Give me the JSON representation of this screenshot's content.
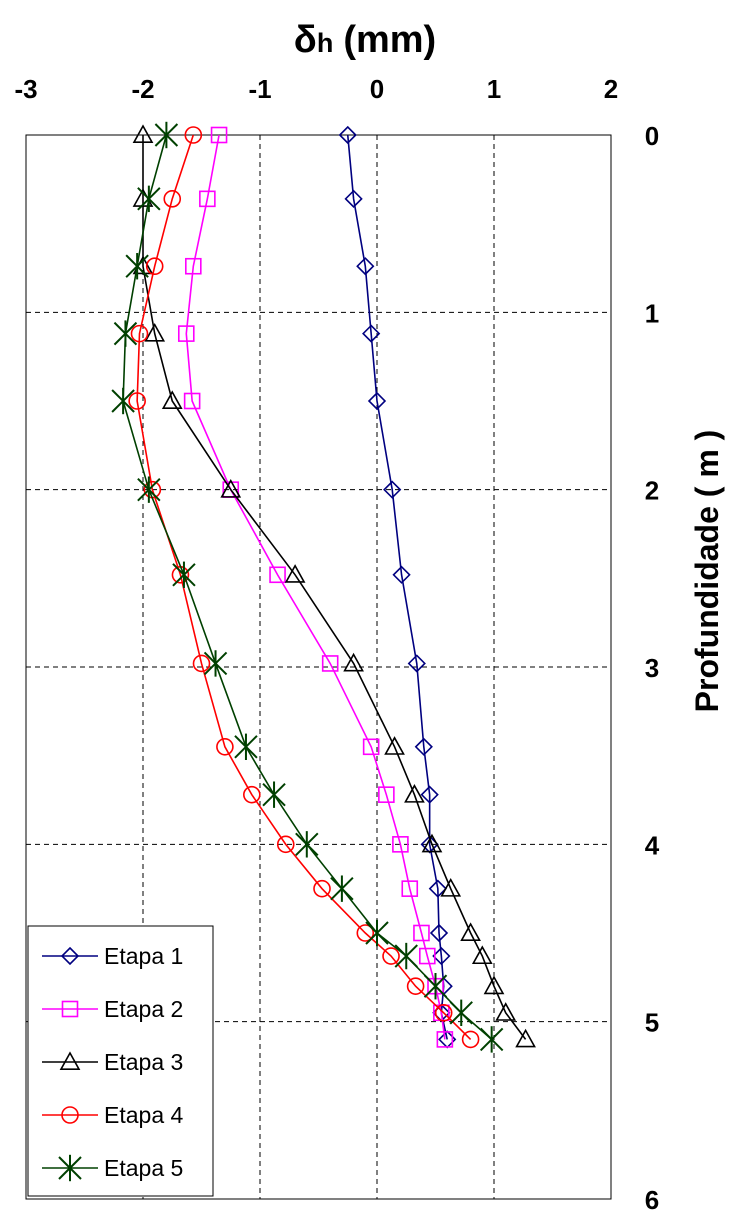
{
  "chart_data": {
    "type": "line",
    "title": "",
    "xlabel_symbol": "δ",
    "xlabel_sub": "h",
    "xlabel_unit": "(mm)",
    "ylabel": "Profundidade ( m )",
    "xlim": [
      -3,
      2
    ],
    "ylim": [
      0,
      6
    ],
    "y_inverted": true,
    "x_axis_position": "top",
    "y_axis_position": "right",
    "x_ticks": [
      -3,
      -2,
      -1,
      0,
      1,
      2
    ],
    "y_ticks": [
      0,
      1,
      2,
      3,
      4,
      5,
      6
    ],
    "x_tick_labels": [
      "-3",
      "-2",
      "-1",
      "0",
      "1",
      "2"
    ],
    "y_tick_labels": [
      "0",
      "1",
      "2",
      "3",
      "4",
      "5",
      "6"
    ],
    "grid": true,
    "legend_position": "bottom-left",
    "series": [
      {
        "name": "Etapa 1",
        "color": "#000080",
        "marker": "diamond",
        "points": [
          [
            -0.25,
            0.0
          ],
          [
            -0.2,
            0.36
          ],
          [
            -0.1,
            0.74
          ],
          [
            -0.05,
            1.12
          ],
          [
            0.0,
            1.5
          ],
          [
            0.13,
            2.0
          ],
          [
            0.21,
            2.48
          ],
          [
            0.34,
            2.98
          ],
          [
            0.4,
            3.45
          ],
          [
            0.45,
            3.72
          ],
          [
            0.45,
            4.0
          ],
          [
            0.52,
            4.25
          ],
          [
            0.53,
            4.5
          ],
          [
            0.55,
            4.63
          ],
          [
            0.57,
            4.8
          ],
          [
            0.55,
            4.95
          ],
          [
            0.6,
            5.1
          ]
        ]
      },
      {
        "name": "Etapa 2",
        "color": "#FF00FF",
        "marker": "square",
        "points": [
          [
            -1.35,
            0.0
          ],
          [
            -1.45,
            0.36
          ],
          [
            -1.57,
            0.74
          ],
          [
            -1.63,
            1.12
          ],
          [
            -1.58,
            1.5
          ],
          [
            -1.25,
            2.0
          ],
          [
            -0.85,
            2.48
          ],
          [
            -0.4,
            2.98
          ],
          [
            -0.05,
            3.45
          ],
          [
            0.08,
            3.72
          ],
          [
            0.2,
            4.0
          ],
          [
            0.28,
            4.25
          ],
          [
            0.38,
            4.5
          ],
          [
            0.43,
            4.63
          ],
          [
            0.5,
            4.8
          ],
          [
            0.55,
            4.95
          ],
          [
            0.58,
            5.1
          ]
        ]
      },
      {
        "name": "Etapa 3",
        "color": "#000000",
        "marker": "triangle",
        "points": [
          [
            -2.0,
            0.0
          ],
          [
            -2.0,
            0.36
          ],
          [
            -2.0,
            0.74
          ],
          [
            -1.9,
            1.12
          ],
          [
            -1.75,
            1.5
          ],
          [
            -1.25,
            2.0
          ],
          [
            -0.7,
            2.48
          ],
          [
            -0.2,
            2.98
          ],
          [
            0.15,
            3.45
          ],
          [
            0.32,
            3.72
          ],
          [
            0.47,
            4.0
          ],
          [
            0.63,
            4.25
          ],
          [
            0.8,
            4.5
          ],
          [
            0.9,
            4.63
          ],
          [
            1.0,
            4.8
          ],
          [
            1.1,
            4.95
          ],
          [
            1.27,
            5.1
          ]
        ]
      },
      {
        "name": "Etapa 4",
        "color": "#FF0000",
        "marker": "circle",
        "points": [
          [
            -1.57,
            0.0
          ],
          [
            -1.75,
            0.36
          ],
          [
            -1.9,
            0.74
          ],
          [
            -2.03,
            1.12
          ],
          [
            -2.05,
            1.5
          ],
          [
            -1.92,
            2.0
          ],
          [
            -1.68,
            2.48
          ],
          [
            -1.5,
            2.98
          ],
          [
            -1.3,
            3.45
          ],
          [
            -1.07,
            3.72
          ],
          [
            -0.78,
            4.0
          ],
          [
            -0.47,
            4.25
          ],
          [
            -0.1,
            4.5
          ],
          [
            0.12,
            4.63
          ],
          [
            0.33,
            4.8
          ],
          [
            0.57,
            4.95
          ],
          [
            0.8,
            5.1
          ]
        ]
      },
      {
        "name": "Etapa 5",
        "color": "#004000",
        "marker": "star",
        "points": [
          [
            -1.8,
            0.0
          ],
          [
            -1.95,
            0.36
          ],
          [
            -2.05,
            0.74
          ],
          [
            -2.15,
            1.12
          ],
          [
            -2.17,
            1.5
          ],
          [
            -1.95,
            2.0
          ],
          [
            -1.65,
            2.48
          ],
          [
            -1.38,
            2.98
          ],
          [
            -1.12,
            3.45
          ],
          [
            -0.88,
            3.72
          ],
          [
            -0.6,
            4.0
          ],
          [
            -0.3,
            4.25
          ],
          [
            0.0,
            4.5
          ],
          [
            0.25,
            4.63
          ],
          [
            0.5,
            4.8
          ],
          [
            0.72,
            4.95
          ],
          [
            0.98,
            5.1
          ]
        ]
      }
    ]
  }
}
